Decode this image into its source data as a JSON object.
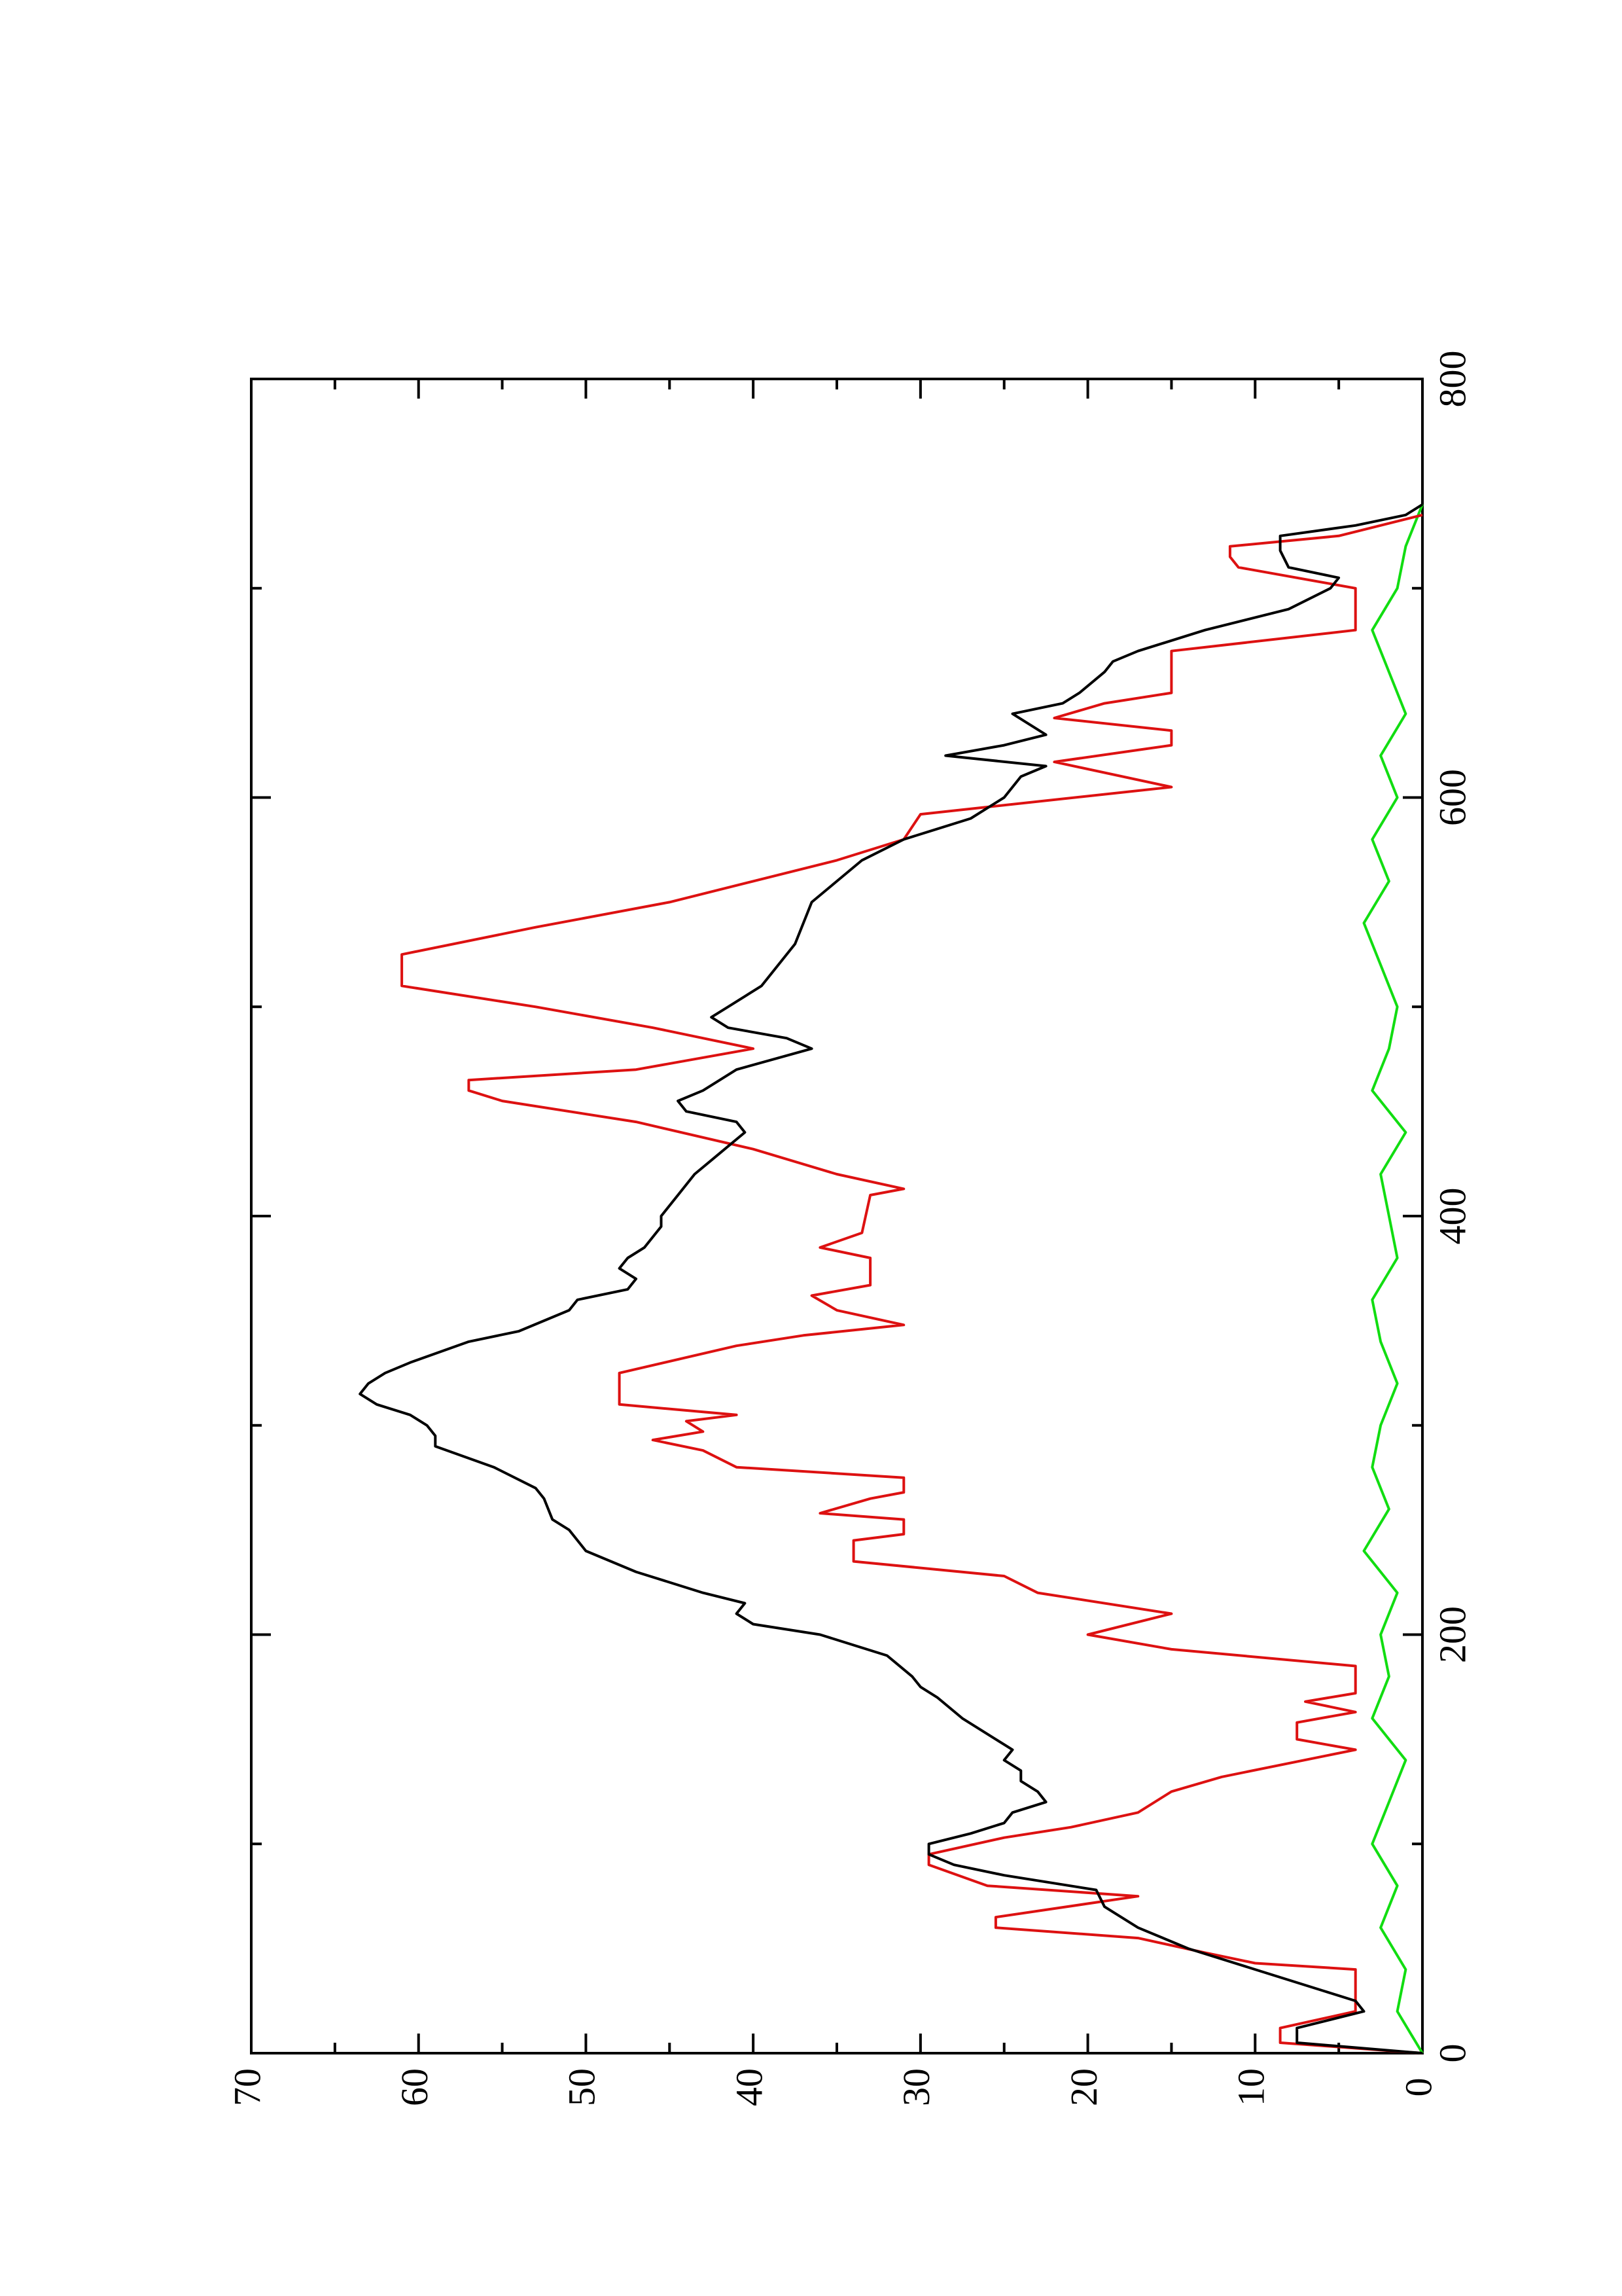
{
  "chart_data": {
    "type": "line",
    "xlim": [
      0,
      800
    ],
    "xticks": [
      0,
      200,
      400,
      600,
      800
    ],
    "xminorticks": [
      100,
      300,
      500,
      700
    ],
    "ylim": [
      0,
      70
    ],
    "yticks": [
      0,
      10,
      20,
      30,
      40,
      50,
      60,
      70
    ],
    "yminorticks": [
      5,
      15,
      25,
      35,
      45,
      55,
      65
    ],
    "series": [
      {
        "color": "#000000",
        "x": [
          0,
          5,
          12,
          20,
          25,
          30,
          40,
          50,
          60,
          65,
          70,
          78,
          85,
          90,
          95,
          100,
          105,
          110,
          115,
          120,
          125,
          130,
          135,
          140,
          145,
          150,
          160,
          170,
          175,
          180,
          190,
          200,
          205,
          210,
          215,
          220,
          230,
          240,
          250,
          255,
          265,
          270,
          280,
          290,
          295,
          300,
          305,
          310,
          315,
          320,
          325,
          330,
          340,
          345,
          350,
          355,
          360,
          365,
          370,
          375,
          380,
          385,
          390,
          395,
          400,
          405,
          410,
          420,
          430,
          440,
          445,
          450,
          455,
          460,
          470,
          480,
          485,
          490,
          495,
          500,
          505,
          510,
          520,
          530,
          540,
          550,
          560,
          570,
          580,
          590,
          600,
          610,
          615,
          620,
          625,
          630,
          640,
          645,
          650,
          660,
          665,
          670,
          680,
          690,
          700,
          705,
          710,
          718,
          725,
          730,
          735,
          740
        ],
        "values": [
          0,
          7.5,
          7.5,
          3.5,
          4,
          6,
          10,
          14,
          17,
          18,
          19,
          19.5,
          25,
          28,
          29.5,
          29.5,
          27,
          25,
          24.5,
          22.5,
          23,
          24,
          24,
          25,
          24.5,
          25.5,
          27.5,
          29,
          30,
          30.5,
          32,
          36,
          40,
          41,
          40.5,
          43,
          47,
          50,
          51,
          52,
          52.5,
          53,
          55.5,
          59,
          59,
          59.5,
          60.5,
          62.5,
          63.5,
          63,
          62,
          60.5,
          57,
          54,
          52.5,
          51,
          50.5,
          47.5,
          47,
          48,
          47.5,
          46.5,
          46,
          45.5,
          45.5,
          45,
          44.5,
          43.5,
          42,
          40.5,
          41,
          44,
          44.5,
          43,
          41,
          36.5,
          38,
          41.5,
          42.5,
          41.5,
          40.5,
          39.5,
          38.5,
          37.5,
          37,
          36.5,
          35,
          33.5,
          31,
          27,
          25,
          24,
          22.5,
          28.5,
          25,
          22.5,
          24.5,
          21.5,
          20.5,
          19,
          18.5,
          17,
          13,
          8,
          5.5,
          5,
          8,
          8.5,
          8.5,
          4,
          1,
          0
        ]
      },
      {
        "color": "#dd1111",
        "x": [
          0,
          5,
          12,
          20,
          40,
          43,
          48,
          55,
          60,
          65,
          75,
          80,
          90,
          95,
          103,
          108,
          115,
          125,
          132,
          145,
          150,
          158,
          163,
          168,
          172,
          185,
          193,
          200,
          210,
          220,
          228,
          235,
          245,
          248,
          255,
          258,
          265,
          268,
          275,
          280,
          288,
          293,
          297,
          302,
          305,
          310,
          325,
          338,
          343,
          348,
          355,
          362,
          367,
          380,
          385,
          392,
          410,
          413,
          420,
          432,
          445,
          455,
          460,
          465,
          470,
          480,
          490,
          500,
          510,
          525,
          538,
          550,
          560,
          570,
          580,
          592,
          605,
          617,
          625,
          632,
          638,
          645,
          650,
          670,
          680,
          700,
          710,
          715,
          720,
          725,
          735
        ],
        "values": [
          0,
          8.5,
          8.5,
          4,
          4,
          10,
          13,
          17,
          25.5,
          25.5,
          17,
          26,
          29.5,
          29.5,
          25,
          21,
          17,
          15,
          12,
          4,
          7.5,
          7.5,
          4,
          7,
          4,
          4,
          15,
          20,
          15,
          23,
          25,
          34,
          34,
          31,
          31,
          36,
          33,
          31,
          31,
          41,
          43,
          46,
          43,
          44,
          41,
          48,
          48,
          41,
          37,
          31,
          35,
          36.5,
          33,
          33,
          36,
          33.5,
          33,
          31,
          35,
          40,
          47,
          55,
          57,
          57,
          47,
          40,
          46,
          53,
          61,
          61,
          53,
          45,
          40,
          35,
          31,
          30,
          15,
          22,
          15,
          15,
          22,
          19,
          15,
          15,
          4,
          4,
          11,
          11.5,
          11.5,
          5,
          0
        ]
      },
      {
        "color": "#11dd11",
        "x": [
          0,
          20,
          40,
          60,
          80,
          100,
          120,
          140,
          160,
          180,
          200,
          220,
          240,
          260,
          280,
          300,
          320,
          340,
          360,
          380,
          400,
          420,
          440,
          460,
          480,
          500,
          520,
          540,
          560,
          580,
          600,
          620,
          640,
          660,
          680,
          700,
          720,
          740
        ],
        "values": [
          0,
          1.5,
          1,
          2.5,
          1.5,
          3,
          2,
          1,
          3,
          2,
          2.5,
          1.5,
          3.5,
          2,
          3,
          2.5,
          1.5,
          2.5,
          3,
          1.5,
          2,
          2.5,
          1,
          3,
          2,
          1.5,
          2.5,
          3.5,
          2,
          3,
          1.5,
          2.5,
          1,
          2,
          3,
          1.5,
          1,
          0
        ]
      }
    ]
  }
}
